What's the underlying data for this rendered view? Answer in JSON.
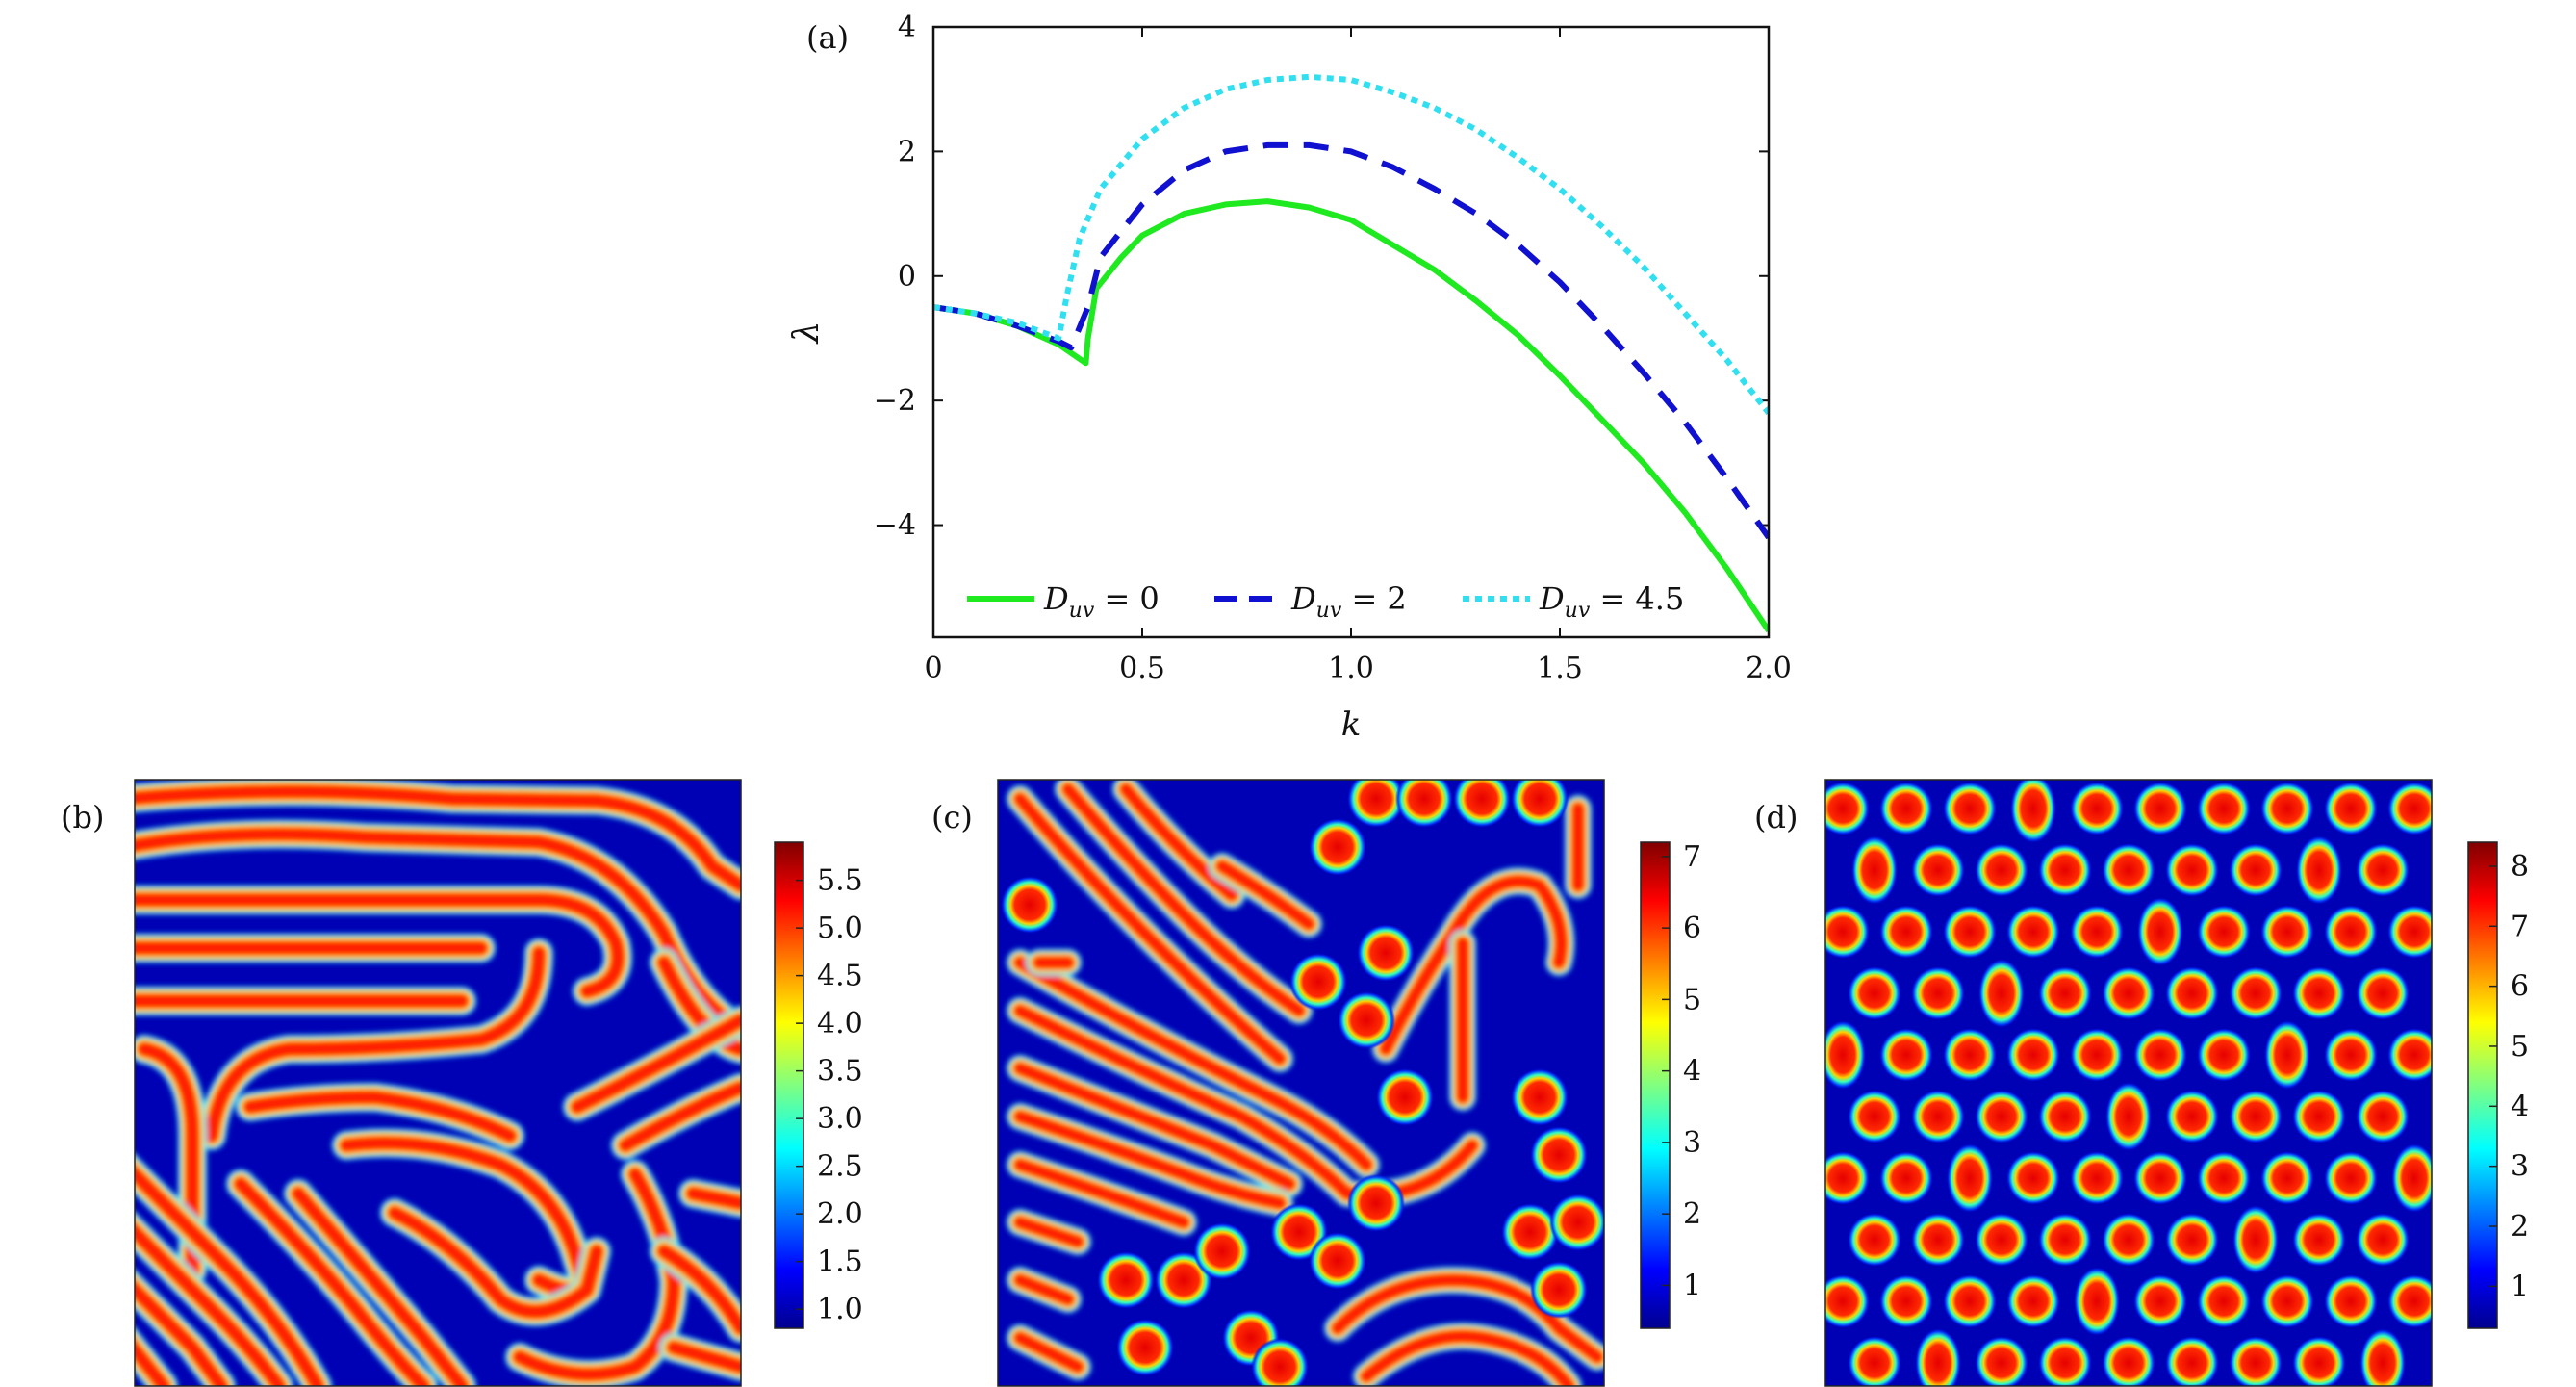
{
  "chart_data": [
    {
      "panel_label": "(a)",
      "type": "line",
      "xlabel": "k",
      "ylabel": "λ",
      "xlim": [
        0,
        2.0
      ],
      "ylim": [
        -5.8,
        4
      ],
      "xticks": [
        0,
        0.5,
        1.0,
        1.5,
        2.0
      ],
      "xtick_labels": [
        "0",
        "0.5",
        "1.0",
        "1.5",
        "2.0"
      ],
      "yticks": [
        -4,
        -2,
        0,
        2,
        4
      ],
      "ytick_labels": [
        "−4",
        "−2",
        "0",
        "2",
        "4"
      ],
      "legend_position": "bottom",
      "series": [
        {
          "name": "D_uv = 0",
          "label_base": "D",
          "label_sub": "uv",
          "label_rest": " = 0",
          "color": "#1fe91f",
          "dash": "solid",
          "x": [
            0,
            0.1,
            0.2,
            0.3,
            0.365,
            0.37,
            0.39,
            0.45,
            0.5,
            0.6,
            0.7,
            0.8,
            0.9,
            1.0,
            1.1,
            1.2,
            1.3,
            1.4,
            1.5,
            1.6,
            1.7,
            1.8,
            1.9,
            2.0
          ],
          "y": [
            -0.5,
            -0.6,
            -0.8,
            -1.1,
            -1.4,
            -1.0,
            -0.2,
            0.3,
            0.65,
            1.0,
            1.15,
            1.2,
            1.1,
            0.9,
            0.5,
            0.1,
            -0.4,
            -0.95,
            -1.6,
            -2.3,
            -3.0,
            -3.8,
            -4.7,
            -5.7
          ]
        },
        {
          "name": "D_uv = 2",
          "label_base": "D",
          "label_sub": "uv",
          "label_rest": " = 2",
          "color": "#1010d0",
          "dash": "dashed",
          "x": [
            0,
            0.1,
            0.2,
            0.3,
            0.33,
            0.37,
            0.4,
            0.5,
            0.6,
            0.7,
            0.8,
            0.9,
            1.0,
            1.1,
            1.2,
            1.3,
            1.4,
            1.5,
            1.6,
            1.7,
            1.8,
            1.9,
            2.0
          ],
          "y": [
            -0.5,
            -0.6,
            -0.8,
            -1.05,
            -1.15,
            -0.5,
            0.3,
            1.15,
            1.7,
            2.0,
            2.1,
            2.1,
            2.0,
            1.75,
            1.4,
            1.0,
            0.5,
            -0.1,
            -0.8,
            -1.55,
            -2.35,
            -3.25,
            -4.2
          ]
        },
        {
          "name": "D_uv = 4.5",
          "label_base": "D",
          "label_sub": "uv",
          "label_rest": " = 4.5",
          "color": "#30e0f0",
          "dash": "dotted",
          "x": [
            0,
            0.1,
            0.2,
            0.28,
            0.3,
            0.32,
            0.35,
            0.4,
            0.5,
            0.6,
            0.7,
            0.8,
            0.9,
            1.0,
            1.1,
            1.2,
            1.3,
            1.4,
            1.5,
            1.6,
            1.7,
            1.8,
            1.9,
            2.0
          ],
          "y": [
            -0.5,
            -0.6,
            -0.75,
            -0.95,
            -1.0,
            -0.3,
            0.6,
            1.4,
            2.2,
            2.7,
            3.0,
            3.15,
            3.2,
            3.15,
            2.95,
            2.7,
            2.35,
            1.9,
            1.4,
            0.8,
            0.15,
            -0.6,
            -1.35,
            -2.2
          ]
        }
      ]
    },
    {
      "panel_label": "(b)",
      "type": "heatmap",
      "pattern": "labyrinth stripes",
      "colorscale": "jet",
      "colorbar_range": [
        0.8,
        5.9
      ],
      "colorbar_ticks": [
        1.0,
        1.5,
        2.0,
        2.5,
        3.0,
        3.5,
        4.0,
        4.5,
        5.0,
        5.5
      ],
      "colorbar_tick_labels": [
        "1.0",
        "1.5",
        "2.0",
        "2.5",
        "3.0",
        "3.5",
        "4.0",
        "4.5",
        "5.0",
        "5.5"
      ]
    },
    {
      "panel_label": "(c)",
      "type": "heatmap",
      "pattern": "mixed stripes and spots",
      "colorscale": "jet",
      "colorbar_range": [
        0.4,
        7.2
      ],
      "colorbar_ticks": [
        1,
        2,
        3,
        4,
        5,
        6,
        7
      ],
      "colorbar_tick_labels": [
        "1",
        "2",
        "3",
        "4",
        "5",
        "6",
        "7"
      ]
    },
    {
      "panel_label": "(d)",
      "type": "heatmap",
      "pattern": "hexagonal spots",
      "colorscale": "jet",
      "colorbar_range": [
        0.3,
        8.4
      ],
      "colorbar_ticks": [
        1,
        2,
        3,
        4,
        5,
        6,
        7,
        8
      ],
      "colorbar_tick_labels": [
        "1",
        "2",
        "3",
        "4",
        "5",
        "6",
        "7",
        "8"
      ]
    }
  ]
}
